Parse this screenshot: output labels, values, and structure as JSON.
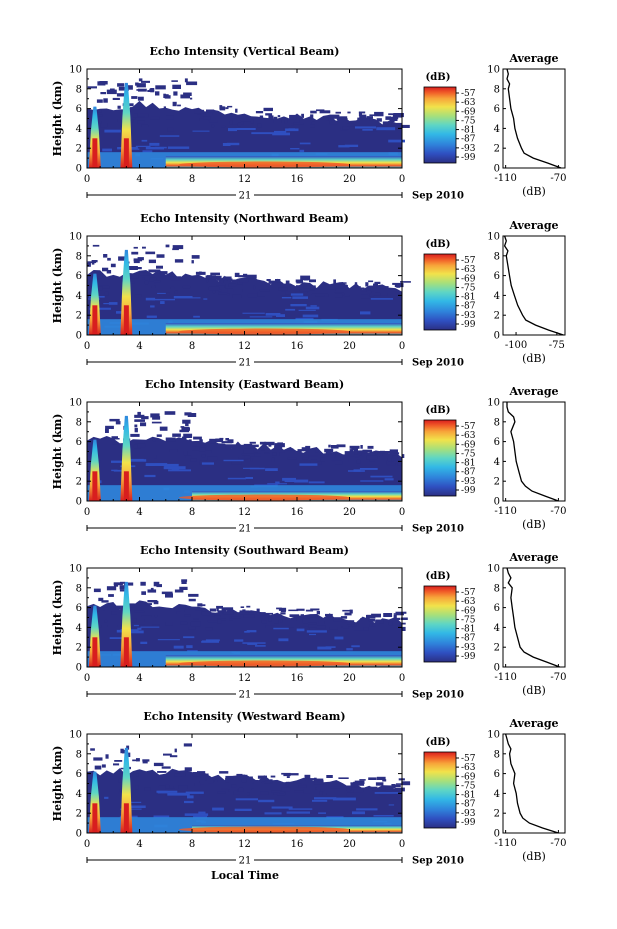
{
  "figure": {
    "xlabel": "Local Time",
    "date_label": "Sep 2010",
    "day_label": "21",
    "colorbar_unit": "(dB)",
    "colorbar_ticks": [
      "-57",
      "-63",
      "-69",
      "-75",
      "-81",
      "-87",
      "-93",
      "-99"
    ],
    "colors": {
      "background_blue": "#2b2f83",
      "ramp": [
        "#2b2f83",
        "#2f4fc0",
        "#2f86dc",
        "#32b8e6",
        "#5fd6c4",
        "#a8e07a",
        "#f2e24a",
        "#f7a43a",
        "#f05a28",
        "#d81e1e"
      ]
    }
  },
  "chart_data": [
    {
      "type": "heatmap",
      "title": "Echo Intensity (Vertical Beam)",
      "xlabel": "",
      "ylabel": "Height (km)",
      "x_ticks": [
        "0",
        "4",
        "8",
        "12",
        "16",
        "20",
        "0"
      ],
      "y_ticks": [
        "0",
        "2",
        "4",
        "6",
        "8",
        "10"
      ],
      "xlim": [
        0,
        24
      ],
      "ylim": [
        0,
        10
      ],
      "value_unit": "dB",
      "color_range": [
        -99,
        -57
      ],
      "features": {
        "rain_columns_hours": [
          0.6,
          3.0
        ],
        "strong_layer_height_km": [
          0,
          1.2
        ],
        "strong_layer_hours": [
          6,
          24
        ]
      },
      "average_profile": {
        "title": "Average",
        "xlabel": "(dB)",
        "x_ticks": [
          "-110",
          "-70"
        ],
        "xlim": [
          -112,
          -65
        ],
        "y_ticks": [
          "0",
          "2",
          "4",
          "6",
          "8",
          "10"
        ],
        "ylim": [
          0,
          10
        ],
        "height_km": [
          0,
          0.5,
          1,
          1.5,
          2,
          3,
          4,
          5,
          6,
          7,
          8,
          8.5,
          9,
          9.5,
          10
        ],
        "value_db": [
          -68,
          -78,
          -89,
          -96,
          -98,
          -101,
          -103,
          -104,
          -106,
          -107,
          -108,
          -107,
          -109,
          -108,
          -109
        ]
      }
    },
    {
      "type": "heatmap",
      "title": "Echo Intensity (Northward Beam)",
      "xlabel": "",
      "ylabel": "Height (km)",
      "x_ticks": [
        "0",
        "4",
        "8",
        "12",
        "16",
        "20",
        "0"
      ],
      "y_ticks": [
        "0",
        "2",
        "4",
        "6",
        "8",
        "10"
      ],
      "xlim": [
        0,
        24
      ],
      "ylim": [
        0,
        10
      ],
      "value_unit": "dB",
      "color_range": [
        -99,
        -57
      ],
      "features": {
        "rain_columns_hours": [
          0.6,
          3.0
        ],
        "strong_layer_height_km": [
          0,
          1.2
        ],
        "strong_layer_hours": [
          6,
          24
        ]
      },
      "average_profile": {
        "title": "Average",
        "xlabel": "(dB)",
        "x_ticks": [
          "-100",
          "-75"
        ],
        "xlim": [
          -108,
          -70
        ],
        "y_ticks": [
          "0",
          "2",
          "4",
          "6",
          "8",
          "10"
        ],
        "ylim": [
          0,
          10
        ],
        "height_km": [
          0,
          0.5,
          1,
          1.5,
          2,
          3,
          4,
          5,
          6,
          7,
          8,
          8.5,
          9,
          9.5,
          10
        ],
        "value_db": [
          -71,
          -80,
          -88,
          -94,
          -96,
          -99,
          -101,
          -103,
          -104,
          -105,
          -106,
          -105,
          -107,
          -106,
          -107
        ]
      }
    },
    {
      "type": "heatmap",
      "title": "Echo Intensity (Eastward Beam)",
      "xlabel": "",
      "ylabel": "Height (km)",
      "x_ticks": [
        "0",
        "4",
        "8",
        "12",
        "16",
        "20",
        "0"
      ],
      "y_ticks": [
        "0",
        "2",
        "4",
        "6",
        "8",
        "10"
      ],
      "xlim": [
        0,
        24
      ],
      "ylim": [
        0,
        10
      ],
      "value_unit": "dB",
      "color_range": [
        -99,
        -57
      ],
      "features": {
        "rain_columns_hours": [
          0.6,
          3.0
        ],
        "strong_layer_height_km": [
          0,
          1.0
        ],
        "strong_layer_hours": [
          8,
          24
        ]
      },
      "average_profile": {
        "title": "Average",
        "xlabel": "(dB)",
        "x_ticks": [
          "-110",
          "-70"
        ],
        "xlim": [
          -112,
          -65
        ],
        "y_ticks": [
          "0",
          "2",
          "4",
          "6",
          "8",
          "10"
        ],
        "ylim": [
          0,
          10
        ],
        "height_km": [
          0,
          0.5,
          1,
          1.5,
          2,
          3,
          4,
          5,
          6,
          7,
          8,
          8.5,
          9,
          9.5,
          10
        ],
        "value_db": [
          -70,
          -80,
          -90,
          -95,
          -98,
          -100,
          -102,
          -103,
          -104,
          -106,
          -103,
          -104,
          -108,
          -109,
          -109
        ]
      }
    },
    {
      "type": "heatmap",
      "title": "Echo Intensity (Southward Beam)",
      "xlabel": "",
      "ylabel": "Height (km)",
      "x_ticks": [
        "0",
        "4",
        "8",
        "12",
        "16",
        "20",
        "0"
      ],
      "y_ticks": [
        "0",
        "2",
        "4",
        "6",
        "8",
        "10"
      ],
      "xlim": [
        0,
        24
      ],
      "ylim": [
        0,
        10
      ],
      "value_unit": "dB",
      "color_range": [
        -99,
        -57
      ],
      "features": {
        "rain_columns_hours": [
          0.6,
          3.0
        ],
        "strong_layer_height_km": [
          0,
          1.2
        ],
        "strong_layer_hours": [
          6,
          24
        ]
      },
      "average_profile": {
        "title": "Average",
        "xlabel": "(dB)",
        "x_ticks": [
          "-110",
          "-70"
        ],
        "xlim": [
          -112,
          -65
        ],
        "y_ticks": [
          "0",
          "2",
          "4",
          "6",
          "8",
          "10"
        ],
        "ylim": [
          0,
          10
        ],
        "height_km": [
          0,
          0.5,
          1,
          1.5,
          2,
          3,
          4,
          5,
          6,
          7,
          8,
          8.5,
          9,
          9.5,
          10
        ],
        "value_db": [
          -69,
          -79,
          -89,
          -96,
          -99,
          -101,
          -103,
          -104,
          -105,
          -106,
          -105,
          -108,
          -106,
          -108,
          -109
        ]
      }
    },
    {
      "type": "heatmap",
      "title": "Echo Intensity (Westward Beam)",
      "xlabel": "Local Time",
      "ylabel": "Height (km)",
      "x_ticks": [
        "0",
        "4",
        "8",
        "12",
        "16",
        "20",
        "0"
      ],
      "y_ticks": [
        "0",
        "2",
        "4",
        "6",
        "8",
        "10"
      ],
      "xlim": [
        0,
        24
      ],
      "ylim": [
        0,
        10
      ],
      "value_unit": "dB",
      "color_range": [
        -99,
        -57
      ],
      "features": {
        "rain_columns_hours": [
          0.6,
          3.0
        ],
        "strong_layer_height_km": [
          0,
          0.8
        ],
        "strong_layer_hours": [
          8,
          24
        ]
      },
      "average_profile": {
        "title": "Average",
        "xlabel": "(dB)",
        "x_ticks": [
          "-110",
          "-70"
        ],
        "xlim": [
          -112,
          -65
        ],
        "y_ticks": [
          "0",
          "2",
          "4",
          "6",
          "8",
          "10"
        ],
        "ylim": [
          0,
          10
        ],
        "height_km": [
          0,
          0.5,
          1,
          1.5,
          2,
          3,
          4,
          5,
          6,
          7,
          8,
          8.5,
          9,
          9.5,
          10
        ],
        "value_db": [
          -70,
          -82,
          -92,
          -97,
          -99,
          -101,
          -102,
          -104,
          -103,
          -106,
          -107,
          -106,
          -108,
          -109,
          -110
        ]
      }
    }
  ]
}
